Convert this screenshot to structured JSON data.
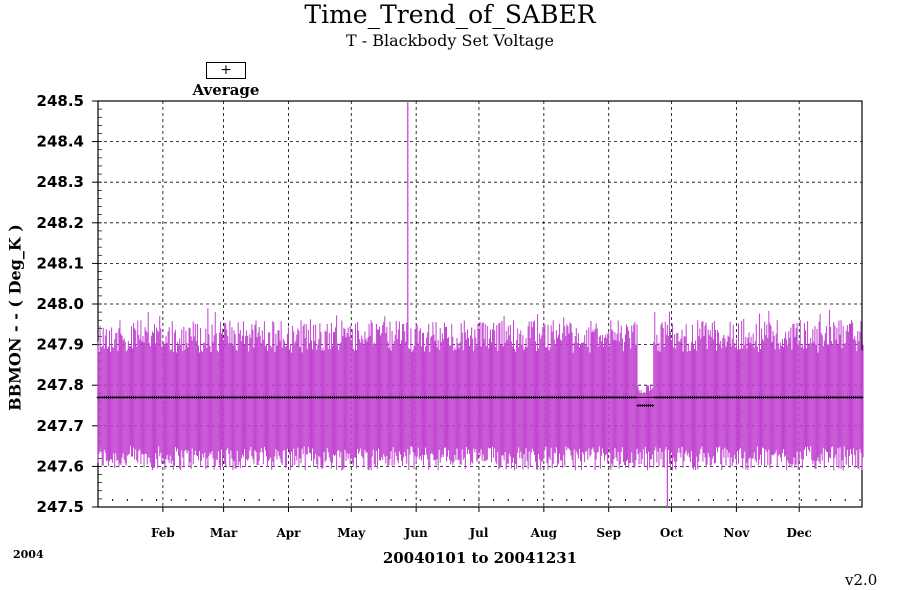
{
  "chart_data": {
    "type": "line",
    "title": "Time_Trend_of_SABER",
    "subtitle": "T - Blackbody Set Voltage",
    "ylabel": "BBMON  - - ( Deg_K )",
    "xlabel": "20040101 to 20041231",
    "year_label": "2004",
    "version_label": "v2.0",
    "legend": {
      "symbol": "+",
      "label": "Average"
    },
    "ylim": [
      247.5,
      248.5
    ],
    "yticks": [
      "247.5",
      "247.6",
      "247.7",
      "247.8",
      "247.9",
      "248.0",
      "248.1",
      "248.2",
      "248.3",
      "248.4",
      "248.5"
    ],
    "xlim": [
      "2004-01-01",
      "2004-12-31"
    ],
    "month_ticks": [
      {
        "label": "Feb",
        "date": "2004-02-01"
      },
      {
        "label": "Mar",
        "date": "2004-03-01"
      },
      {
        "label": "Apr",
        "date": "2004-04-01"
      },
      {
        "label": "May",
        "date": "2004-05-01"
      },
      {
        "label": "Jun",
        "date": "2004-06-01"
      },
      {
        "label": "Jul",
        "date": "2004-07-01"
      },
      {
        "label": "Aug",
        "date": "2004-08-01"
      },
      {
        "label": "Sep",
        "date": "2004-09-01"
      },
      {
        "label": "Oct",
        "date": "2004-10-01"
      },
      {
        "label": "Nov",
        "date": "2004-11-01"
      },
      {
        "label": "Dec",
        "date": "2004-12-01"
      }
    ],
    "series": [
      {
        "name": "Average",
        "color": "#c040d0",
        "description_values": {
          "typical_min": 247.6,
          "typical_max": 247.96,
          "average": 247.77
        },
        "daily_average": 247.77,
        "spikes": [
          {
            "date": "2004-05-28",
            "max": 248.5
          },
          {
            "date": "2004-09-29",
            "min": 247.5
          }
        ],
        "dip": {
          "start": "2004-09-15",
          "end": "2004-09-22",
          "average": 247.75
        }
      }
    ],
    "grid": true,
    "colors": {
      "series": "#c040d0",
      "average_line": "#000000",
      "grid": "#000000"
    }
  }
}
